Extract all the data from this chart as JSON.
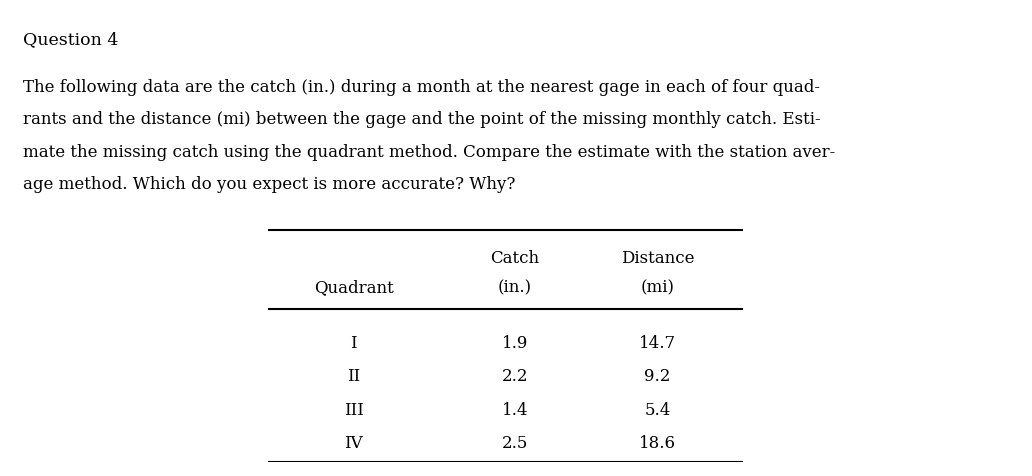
{
  "title": "Question 4",
  "paragraph_lines": [
    "The following data are the catch (in.) during a month at the nearest gage in each of four quad-",
    "rants and the distance (mi) between the gage and the point of the missing monthly catch. Esti-",
    "mate the missing catch using the quadrant method. Compare the estimate with the station aver-",
    "age method. Which do you expect is more accurate? Why?"
  ],
  "rows": [
    [
      "I",
      "1.9",
      "14.7"
    ],
    [
      "II",
      "2.2",
      "9.2"
    ],
    [
      "III",
      "1.4",
      "5.4"
    ],
    [
      "IV",
      "2.5",
      "18.6"
    ]
  ],
  "background_color": "#ffffff",
  "text_color": "#000000",
  "font_size_title": 12.5,
  "font_size_body": 12.0,
  "font_size_table": 12.0
}
